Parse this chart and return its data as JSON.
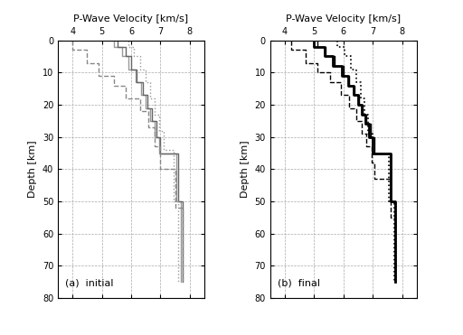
{
  "xlabel_top": "P-Wave Velocity [km/s]",
  "ylabel": "Depth [km]",
  "xlim": [
    3.5,
    8.5
  ],
  "ylim": [
    80,
    0
  ],
  "xticks": [
    4.0,
    5.0,
    6.0,
    7.0,
    8.0
  ],
  "yticks": [
    0,
    10,
    20,
    30,
    40,
    50,
    60,
    70,
    80
  ],
  "panel_a_label": "(a)  initial",
  "panel_b_label": "(b)  final",
  "models_a": [
    {
      "vel": [
        5.4,
        5.4,
        5.7,
        5.7,
        5.9,
        5.9,
        6.15,
        6.15,
        6.35,
        6.35,
        6.5,
        6.5,
        6.65,
        6.65,
        6.8,
        6.8,
        6.95,
        6.95,
        7.55,
        7.55,
        7.7,
        7.7
      ],
      "dep": [
        0,
        2,
        2,
        5,
        5,
        9,
        9,
        13,
        13,
        17,
        17,
        21,
        21,
        25,
        25,
        30,
        30,
        35,
        35,
        50,
        50,
        75
      ],
      "style": "-",
      "color": "#999999",
      "lw": 1.0
    },
    {
      "vel": [
        5.55,
        5.55,
        5.8,
        5.8,
        6.0,
        6.0,
        6.2,
        6.2,
        6.4,
        6.4,
        6.55,
        6.55,
        6.7,
        6.7,
        6.85,
        6.85,
        7.0,
        7.0,
        7.6,
        7.6,
        7.75,
        7.75
      ],
      "dep": [
        0,
        2,
        2,
        5,
        5,
        9,
        9,
        13,
        13,
        17,
        17,
        21,
        21,
        25,
        25,
        30,
        30,
        35,
        35,
        50,
        50,
        75
      ],
      "style": "-",
      "color": "#666666",
      "lw": 1.0
    },
    {
      "vel": [
        4.0,
        4.0,
        4.5,
        4.5,
        4.9,
        4.9,
        5.4,
        5.4,
        5.8,
        5.8,
        6.3,
        6.3,
        6.6,
        6.6,
        6.8,
        6.8,
        7.0,
        7.0,
        7.5,
        7.5,
        7.75,
        7.75
      ],
      "dep": [
        0,
        3,
        3,
        7,
        7,
        11,
        11,
        14,
        14,
        18,
        18,
        22,
        22,
        27,
        27,
        33,
        33,
        40,
        40,
        52,
        52,
        75
      ],
      "style": "--",
      "color": "#888888",
      "lw": 1.0
    },
    {
      "vel": [
        5.9,
        5.9,
        6.1,
        6.1,
        6.3,
        6.3,
        6.5,
        6.5,
        6.65,
        6.65,
        6.8,
        6.8,
        6.95,
        6.95,
        7.1,
        7.1,
        7.45,
        7.45,
        7.6,
        7.6
      ],
      "dep": [
        0,
        2,
        2,
        5,
        5,
        9,
        9,
        13,
        13,
        18,
        18,
        23,
        23,
        28,
        28,
        34,
        34,
        50,
        50,
        75
      ],
      "style": ":",
      "color": "#999999",
      "lw": 1.0
    }
  ],
  "models_b": [
    {
      "vel": [
        5.0,
        5.0,
        5.35,
        5.35,
        5.65,
        5.65,
        5.95,
        5.95,
        6.15,
        6.15,
        6.35,
        6.35,
        6.5,
        6.5,
        6.62,
        6.62,
        6.75,
        6.75,
        6.88,
        6.88,
        7.0,
        7.0,
        7.6,
        7.6,
        7.75,
        7.75
      ],
      "dep": [
        0,
        2,
        2,
        5,
        5,
        8,
        8,
        11,
        11,
        14,
        14,
        17,
        17,
        20,
        20,
        23,
        23,
        26,
        26,
        30,
        30,
        35,
        35,
        50,
        50,
        75
      ],
      "style": "-",
      "color": "#000000",
      "lw": 2.0
    },
    {
      "vel": [
        5.1,
        5.1,
        5.4,
        5.4,
        5.7,
        5.7,
        6.0,
        6.0,
        6.2,
        6.2,
        6.38,
        6.38,
        6.52,
        6.52,
        6.65,
        6.65,
        6.78,
        6.78,
        6.92,
        6.92,
        7.05,
        7.05,
        7.62,
        7.62,
        7.78,
        7.78
      ],
      "dep": [
        0,
        2,
        2,
        5,
        5,
        8,
        8,
        11,
        11,
        14,
        14,
        17,
        17,
        20,
        20,
        23,
        23,
        26,
        26,
        30,
        30,
        35,
        35,
        50,
        50,
        75
      ],
      "style": "-",
      "color": "#000000",
      "lw": 1.0
    },
    {
      "vel": [
        4.2,
        4.2,
        4.7,
        4.7,
        5.1,
        5.1,
        5.55,
        5.55,
        5.9,
        5.9,
        6.2,
        6.2,
        6.45,
        6.45,
        6.62,
        6.62,
        6.78,
        6.78,
        6.95,
        6.95,
        7.05,
        7.05,
        7.62,
        7.62,
        7.78,
        7.78
      ],
      "dep": [
        0,
        3,
        3,
        7,
        7,
        10,
        10,
        13,
        13,
        17,
        17,
        21,
        21,
        25,
        25,
        29,
        29,
        33,
        33,
        38,
        38,
        43,
        43,
        55,
        55,
        75
      ],
      "style": "--",
      "color": "#000000",
      "lw": 1.0
    },
    {
      "vel": [
        5.8,
        5.8,
        6.05,
        6.05,
        6.25,
        6.25,
        6.43,
        6.43,
        6.58,
        6.58,
        6.72,
        6.72,
        6.85,
        6.85,
        7.0,
        7.0,
        7.55,
        7.55,
        7.72,
        7.72
      ],
      "dep": [
        0,
        2,
        2,
        5,
        5,
        9,
        9,
        13,
        13,
        18,
        18,
        23,
        23,
        29,
        29,
        35,
        35,
        50,
        50,
        75
      ],
      "style": ":",
      "color": "#000000",
      "lw": 1.2
    }
  ],
  "grid_color": "#aaaaaa",
  "grid_lw": 0.5,
  "bg_color": "#ffffff"
}
